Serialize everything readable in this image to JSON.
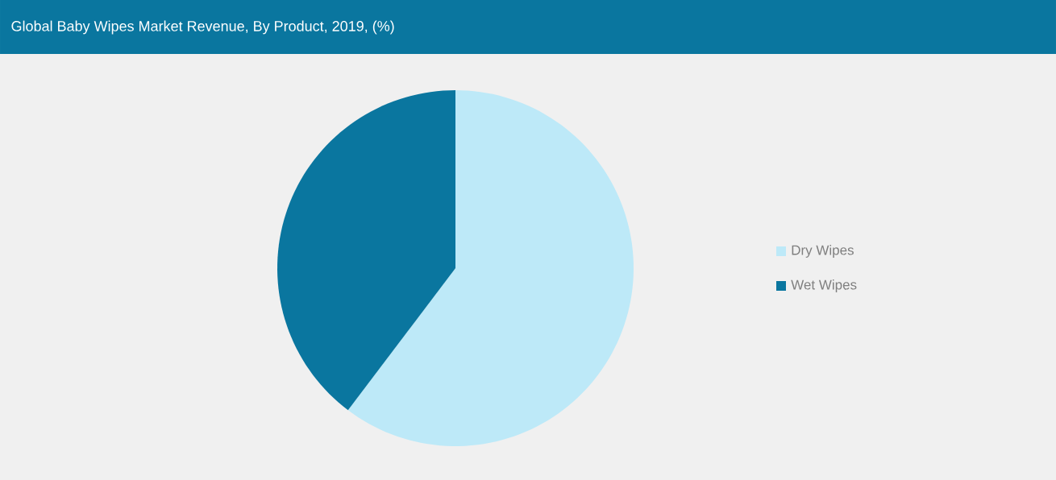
{
  "chart_data": {
    "type": "pie",
    "title": "Global Baby Wipes Market Revenue, By Product, 2019, (%)",
    "categories": [
      "Dry Wipes",
      "Wet Wipes"
    ],
    "values": [
      60.3,
      39.7
    ],
    "colors": [
      "#bde9f8",
      "#0a769f"
    ],
    "legend": "right"
  }
}
